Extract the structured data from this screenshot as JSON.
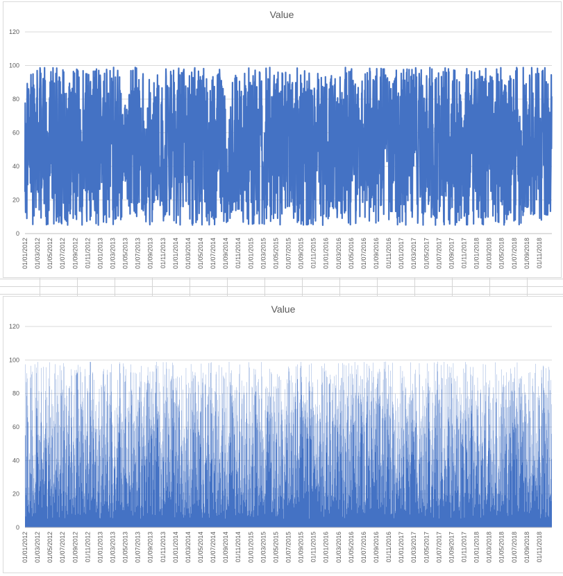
{
  "chart_data": [
    {
      "type": "line",
      "title": "Value",
      "xlabel": "",
      "ylabel": "",
      "ylim": [
        0,
        120
      ],
      "yticks": [
        0,
        20,
        40,
        60,
        80,
        100,
        120
      ],
      "xticks": [
        "01/01/2012",
        "01/03/2012",
        "01/05/2012",
        "01/07/2012",
        "01/09/2012",
        "01/11/2012",
        "01/01/2013",
        "01/03/2013",
        "01/05/2013",
        "01/07/2013",
        "01/09/2013",
        "01/11/2013",
        "01/01/2014",
        "01/03/2014",
        "01/05/2014",
        "01/07/2014",
        "01/09/2014",
        "01/11/2014",
        "01/01/2015",
        "01/03/2015",
        "01/05/2015",
        "01/07/2015",
        "01/09/2015",
        "01/11/2015",
        "01/01/2016",
        "01/03/2016",
        "01/05/2016",
        "01/07/2016",
        "01/09/2016",
        "01/11/2016",
        "01/01/2017",
        "01/03/2017",
        "01/05/2017",
        "01/07/2017",
        "01/09/2017",
        "01/11/2017",
        "01/01/2018",
        "01/03/2018",
        "01/05/2018",
        "01/07/2018",
        "01/09/2018",
        "01/11/2018"
      ],
      "x_range": [
        "01/01/2012",
        "31/12/2018"
      ],
      "value_range": [
        5,
        99
      ],
      "grid": true,
      "legend": "none",
      "series_color": "#4472c4"
    },
    {
      "type": "bar",
      "title": "Value",
      "xlabel": "",
      "ylabel": "",
      "ylim": [
        0,
        120
      ],
      "yticks": [
        0,
        20,
        40,
        60,
        80,
        100,
        120
      ],
      "xticks": [
        "01/01/2012",
        "01/03/2012",
        "01/05/2012",
        "01/07/2012",
        "01/09/2012",
        "01/11/2012",
        "01/01/2013",
        "01/03/2013",
        "01/05/2013",
        "01/07/2013",
        "01/09/2013",
        "01/11/2013",
        "01/01/2014",
        "01/03/2014",
        "01/05/2014",
        "01/07/2014",
        "01/09/2014",
        "01/11/2014",
        "01/01/2015",
        "01/03/2015",
        "01/05/2015",
        "01/07/2015",
        "01/09/2015",
        "01/11/2015",
        "01/01/2016",
        "01/03/2016",
        "01/05/2016",
        "01/07/2016",
        "01/09/2016",
        "01/11/2016",
        "01/01/2017",
        "01/03/2017",
        "01/05/2017",
        "01/07/2017",
        "01/09/2017",
        "01/11/2017",
        "01/01/2018",
        "01/03/2018",
        "01/05/2018",
        "01/07/2018",
        "01/09/2018",
        "01/11/2018"
      ],
      "x_range": [
        "01/01/2012",
        "31/12/2018"
      ],
      "value_range": [
        5,
        99
      ],
      "grid": true,
      "legend": "none",
      "series_color": "#4472c4"
    }
  ]
}
